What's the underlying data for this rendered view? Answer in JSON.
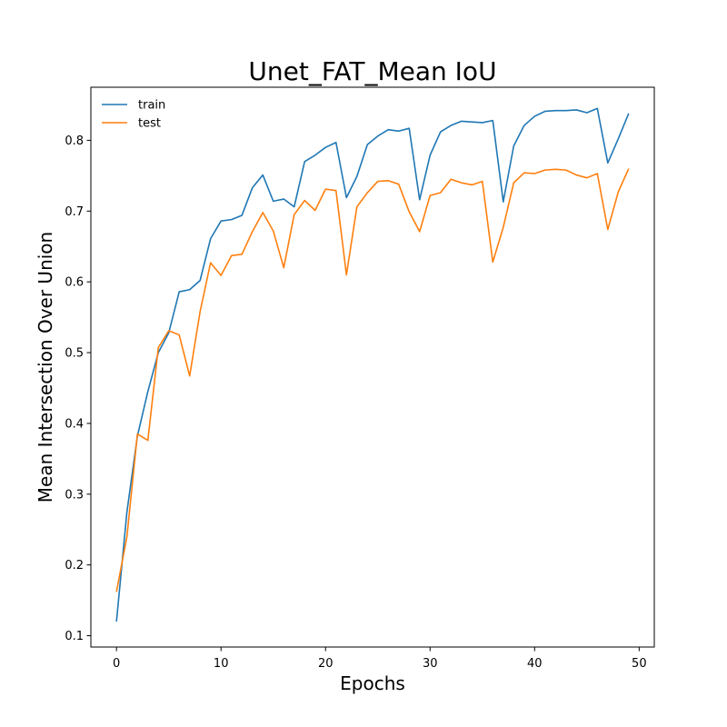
{
  "chart_data": {
    "type": "line",
    "title": "Unet_FAT_Mean IoU",
    "xlabel": "Epochs",
    "ylabel": "Mean Intersection Over Union",
    "xlim": [
      -2.45,
      51.45
    ],
    "ylim": [
      0.084,
      0.875
    ],
    "xticks": [
      0,
      10,
      20,
      30,
      40,
      50
    ],
    "yticks": [
      0.1,
      0.2,
      0.3,
      0.4,
      0.5,
      0.6,
      0.7,
      0.8
    ],
    "grid": false,
    "legend_position": "top-left",
    "x": [
      0,
      1,
      2,
      3,
      4,
      5,
      6,
      7,
      8,
      9,
      10,
      11,
      12,
      13,
      14,
      15,
      16,
      17,
      18,
      19,
      20,
      21,
      22,
      23,
      24,
      25,
      26,
      27,
      28,
      29,
      30,
      31,
      32,
      33,
      34,
      35,
      36,
      37,
      38,
      39,
      40,
      41,
      42,
      43,
      44,
      45,
      46,
      47,
      48,
      49
    ],
    "series": [
      {
        "name": "train",
        "color": "#1f77b4",
        "values": [
          0.12,
          0.275,
          0.382,
          0.445,
          0.5,
          0.528,
          0.586,
          0.589,
          0.602,
          0.661,
          0.686,
          0.688,
          0.694,
          0.733,
          0.751,
          0.714,
          0.717,
          0.706,
          0.77,
          0.779,
          0.79,
          0.797,
          0.719,
          0.749,
          0.794,
          0.806,
          0.815,
          0.813,
          0.817,
          0.716,
          0.779,
          0.812,
          0.821,
          0.827,
          0.826,
          0.825,
          0.828,
          0.713,
          0.792,
          0.821,
          0.834,
          0.841,
          0.842,
          0.842,
          0.843,
          0.839,
          0.845,
          0.768,
          0.802,
          0.838
        ]
      },
      {
        "name": "test",
        "color": "#ff7f0e",
        "values": [
          0.162,
          0.24,
          0.385,
          0.376,
          0.507,
          0.531,
          0.525,
          0.467,
          0.558,
          0.627,
          0.609,
          0.637,
          0.639,
          0.671,
          0.698,
          0.672,
          0.62,
          0.695,
          0.715,
          0.701,
          0.731,
          0.729,
          0.61,
          0.706,
          0.726,
          0.742,
          0.743,
          0.738,
          0.699,
          0.671,
          0.722,
          0.726,
          0.745,
          0.74,
          0.737,
          0.742,
          0.628,
          0.677,
          0.74,
          0.754,
          0.753,
          0.758,
          0.759,
          0.758,
          0.751,
          0.747,
          0.753,
          0.674,
          0.727,
          0.76
        ]
      }
    ]
  }
}
